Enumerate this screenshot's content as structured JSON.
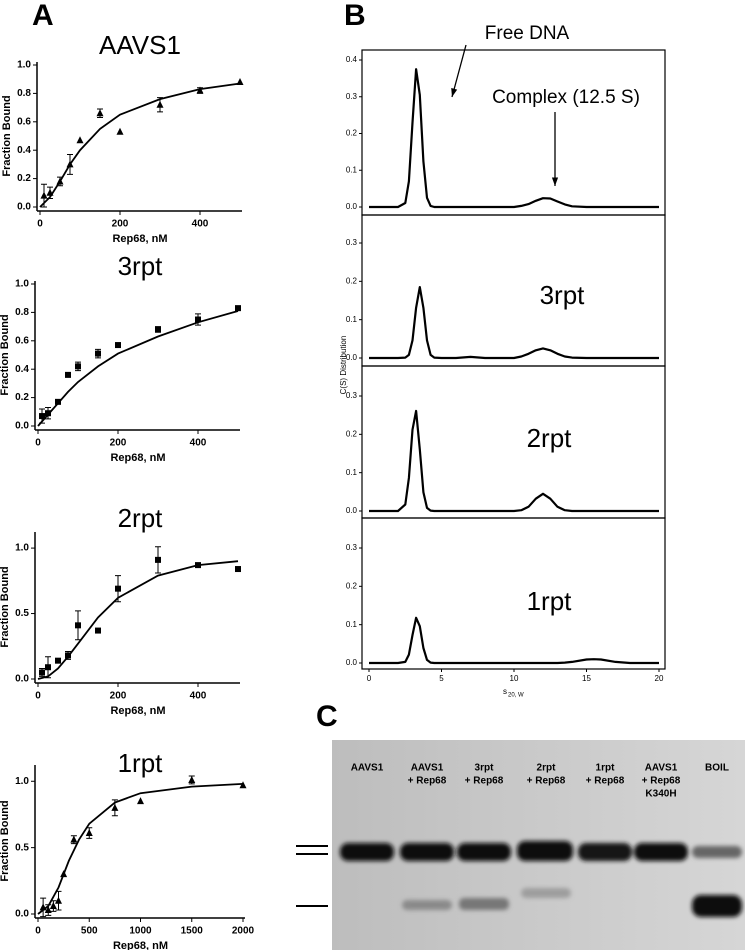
{
  "panel_labels": [
    "A",
    "B",
    "C"
  ],
  "chart_data": [
    {
      "type": "scatter",
      "title": "AAVS1",
      "x_label": "Rep68, nM",
      "y_label": "Fraction Bound",
      "marker": "triangle",
      "color": "#000000",
      "x": [
        10,
        25,
        50,
        75,
        100,
        150,
        200,
        300,
        400,
        500
      ],
      "values": [
        0.08,
        0.1,
        0.18,
        0.3,
        0.47,
        0.66,
        0.53,
        0.72,
        0.82,
        0.88
      ],
      "errors": [
        0.08,
        0.04,
        0.03,
        0.07,
        null,
        0.03,
        null,
        0.05,
        0.02,
        null
      ],
      "fit_x": [
        0,
        25,
        50,
        75,
        100,
        150,
        200,
        300,
        400,
        500
      ],
      "fit_values": [
        0,
        0.07,
        0.18,
        0.3,
        0.4,
        0.55,
        0.65,
        0.76,
        0.83,
        0.87
      ],
      "xlim": [
        0,
        500
      ],
      "ylim": [
        0,
        1
      ],
      "xticks": [
        0,
        200,
        400
      ],
      "yticks": [
        {
          "value": 0,
          "label": "0.0"
        },
        0.2,
        0.4,
        0.6,
        0.8,
        {
          "value": 1,
          "label": "1.0"
        }
      ]
    },
    {
      "type": "scatter",
      "title": "3rpt",
      "x_label": "Rep68, nM",
      "y_label": "Fraction Bound",
      "marker": "square",
      "color": "#000000",
      "x": [
        10,
        25,
        50,
        75,
        100,
        150,
        200,
        300,
        400,
        500
      ],
      "values": [
        0.07,
        0.09,
        0.17,
        0.36,
        0.42,
        0.51,
        0.57,
        0.68,
        0.75,
        0.83
      ],
      "errors": [
        0.05,
        0.04,
        null,
        null,
        0.03,
        0.03,
        null,
        0.02,
        0.04,
        null
      ],
      "fit_x": [
        0,
        25,
        50,
        75,
        100,
        150,
        200,
        300,
        400,
        500
      ],
      "fit_values": [
        0,
        0.08,
        0.16,
        0.24,
        0.31,
        0.42,
        0.51,
        0.63,
        0.73,
        0.81
      ],
      "xlim": [
        0,
        500
      ],
      "ylim": [
        0,
        1
      ],
      "xticks": [
        0,
        200,
        400
      ],
      "yticks": [
        {
          "value": 0,
          "label": "0.0"
        },
        0.2,
        0.4,
        0.6,
        0.8,
        {
          "value": 1,
          "label": "1.0"
        }
      ]
    },
    {
      "type": "scatter",
      "title": "2rpt",
      "x_label": "Rep68, nM",
      "y_label": "Fraction Bound",
      "marker": "square",
      "color": "#000000",
      "x": [
        10,
        25,
        50,
        75,
        100,
        150,
        200,
        300,
        400,
        500
      ],
      "values": [
        0.05,
        0.09,
        0.14,
        0.18,
        0.41,
        0.37,
        0.69,
        0.91,
        0.87,
        0.84
      ],
      "errors": [
        0.03,
        0.08,
        null,
        0.03,
        0.11,
        null,
        0.1,
        0.1,
        null,
        null
      ],
      "fit_x": [
        0,
        25,
        50,
        75,
        100,
        150,
        200,
        300,
        400,
        500
      ],
      "fit_values": [
        0,
        0.02,
        0.08,
        0.17,
        0.27,
        0.47,
        0.62,
        0.79,
        0.87,
        0.9
      ],
      "xlim": [
        0,
        500
      ],
      "ylim": [
        0,
        1.1
      ],
      "xticks": [
        0,
        200,
        400
      ],
      "yticks": [
        {
          "value": 0,
          "label": "0.0"
        },
        0.5,
        {
          "value": 1,
          "label": "1.0"
        }
      ]
    },
    {
      "type": "scatter",
      "title": "1rpt",
      "x_label": "Rep68, nM",
      "y_label": "Fraction Bound",
      "marker": "triangle",
      "color": "#000000",
      "x": [
        50,
        100,
        150,
        200,
        250,
        350,
        500,
        750,
        1000,
        1500,
        2000
      ],
      "values": [
        0.05,
        0.03,
        0.06,
        0.1,
        0.3,
        0.56,
        0.61,
        0.8,
        0.85,
        1.01,
        0.97
      ],
      "errors": [
        0.07,
        0.04,
        0.04,
        0.07,
        null,
        0.03,
        0.04,
        0.06,
        null,
        0.03,
        null
      ],
      "fit_x": [
        0,
        100,
        200,
        300,
        400,
        500,
        750,
        1000,
        1500,
        2000
      ],
      "fit_values": [
        0,
        0.06,
        0.2,
        0.4,
        0.56,
        0.68,
        0.84,
        0.91,
        0.96,
        0.98
      ],
      "xlim": [
        0,
        2000
      ],
      "ylim": [
        0,
        1.1
      ],
      "xticks": [
        0,
        500,
        1000,
        1500,
        2000
      ],
      "yticks": [
        {
          "value": 0,
          "label": "0.0"
        },
        0.5,
        {
          "value": 1,
          "label": "1.0"
        }
      ]
    },
    {
      "type": "line",
      "y_label": "C(S) Distribution",
      "annotations": [
        "Free DNA",
        "Complex (12.5 S)"
      ],
      "color": "#000000",
      "x": [
        0,
        1,
        2,
        2.5,
        2.75,
        3,
        3.25,
        3.5,
        3.75,
        4,
        4.25,
        4.5,
        5,
        6,
        7,
        8,
        9,
        10,
        10.5,
        11,
        11.5,
        12,
        12.5,
        13,
        13.5,
        14,
        15,
        15.5,
        16,
        17,
        18,
        19,
        20
      ],
      "values": [
        0,
        0,
        0,
        0.011,
        0.07,
        0.23,
        0.375,
        0.305,
        0.124,
        0.025,
        0.003,
        0,
        0,
        0,
        0,
        0,
        0,
        0,
        0.003,
        0.008,
        0.017,
        0.024,
        0.023,
        0.015,
        0.007,
        0.002,
        0,
        0,
        0,
        0,
        0,
        0,
        0
      ],
      "xlim": [
        0,
        20
      ],
      "ylim": [
        0,
        0.4
      ],
      "yticks": [
        {
          "value": 0,
          "label": "0.0"
        },
        0.1,
        0.2,
        0.3,
        0.4
      ]
    },
    {
      "type": "line",
      "title": "3rpt",
      "color": "#000000",
      "x": [
        0,
        1,
        2,
        2.5,
        2.75,
        3,
        3.25,
        3.5,
        3.75,
        4,
        4.25,
        4.5,
        5,
        6,
        7,
        8,
        9,
        10,
        10.5,
        11,
        11.5,
        12,
        12.5,
        13,
        13.5,
        14,
        15,
        15.5,
        16,
        17,
        18,
        19,
        20
      ],
      "values": [
        0,
        0,
        0,
        0.001,
        0.008,
        0.046,
        0.131,
        0.185,
        0.131,
        0.046,
        0.008,
        0.001,
        0,
        0,
        0.003,
        0,
        0,
        0,
        0.004,
        0.011,
        0.02,
        0.025,
        0.02,
        0.011,
        0.004,
        0.001,
        0,
        0,
        0,
        0,
        0,
        0,
        0
      ],
      "xlim": [
        0,
        20
      ],
      "ylim": [
        0,
        0.3
      ],
      "yticks": [
        {
          "value": 0,
          "label": "0.0"
        },
        0.1,
        0.2,
        0.3
      ]
    },
    {
      "type": "line",
      "title": "2rpt",
      "color": "#000000",
      "x": [
        0,
        1,
        2,
        2.5,
        2.75,
        3,
        3.25,
        3.5,
        3.75,
        4,
        4.25,
        4.5,
        5,
        6,
        7,
        8,
        9,
        10,
        10.5,
        11,
        11.5,
        12,
        12.5,
        13,
        13.5,
        14,
        15,
        15.5,
        16,
        17,
        18,
        19,
        20
      ],
      "values": [
        0,
        0,
        0,
        0.017,
        0.086,
        0.212,
        0.261,
        0.161,
        0.049,
        0.008,
        0.001,
        0,
        0,
        0,
        0,
        0,
        0,
        0,
        0.002,
        0.011,
        0.032,
        0.045,
        0.032,
        0.011,
        0.002,
        0,
        0,
        0,
        0,
        0,
        0,
        0,
        0
      ],
      "xlim": [
        0,
        20
      ],
      "ylim": [
        0,
        0.3
      ],
      "yticks": [
        {
          "value": 0,
          "label": "0.0"
        },
        0.1,
        0.2,
        0.3
      ]
    },
    {
      "type": "line",
      "title": "1rpt",
      "x_label": "s",
      "x_label_subscript": "20, W",
      "color": "#000000",
      "x": [
        0,
        1,
        2,
        2.5,
        2.75,
        3,
        3.25,
        3.5,
        3.75,
        4,
        4.25,
        4.5,
        5,
        6,
        7,
        8,
        9,
        10,
        10.5,
        11,
        11.5,
        12,
        12.5,
        13,
        13.5,
        14,
        15,
        15.5,
        16,
        17,
        18,
        19,
        20
      ],
      "values": [
        0,
        0,
        0,
        0.003,
        0.022,
        0.073,
        0.118,
        0.096,
        0.039,
        0.008,
        0.001,
        0,
        0,
        0,
        0,
        0,
        0,
        0,
        0,
        0,
        0,
        0,
        0,
        0,
        0.001,
        0.003,
        0.009,
        0.01,
        0.009,
        0.003,
        0,
        0,
        0
      ],
      "xlim": [
        0,
        20
      ],
      "ylim": [
        0,
        0.3
      ],
      "xticks": [
        0,
        5,
        10,
        15,
        20
      ],
      "yticks": [
        {
          "value": 0,
          "label": "0.0"
        },
        0.1,
        0.2,
        0.3
      ]
    }
  ],
  "gel": {
    "lanes": [
      [
        "AAVS1"
      ],
      [
        "AAVS1",
        "+ Rep68"
      ],
      [
        "3rpt",
        "+ Rep68"
      ],
      [
        "2rpt",
        "+ Rep68"
      ],
      [
        "1rpt",
        "+ Rep68"
      ],
      [
        "AAVS1",
        "+ Rep68",
        "K340H"
      ],
      [
        "BOIL"
      ]
    ]
  }
}
